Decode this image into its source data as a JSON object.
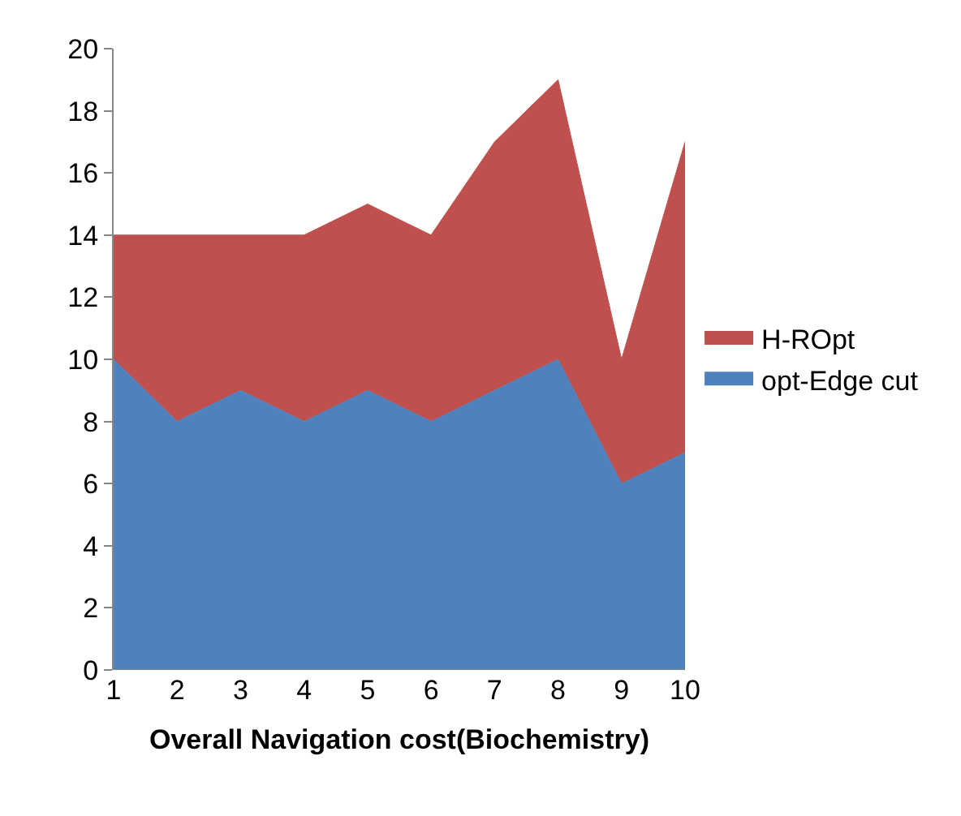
{
  "chart_data": {
    "type": "area",
    "stacked": true,
    "xlabel": "Overall Navigation cost(Biochemistry)",
    "categories": [
      "1",
      "2",
      "3",
      "4",
      "5",
      "6",
      "7",
      "8",
      "9",
      "10"
    ],
    "series": [
      {
        "name": "opt-Edge cut",
        "color": "#4f81bd",
        "values": [
          10,
          8,
          9,
          8,
          9,
          8,
          9,
          10,
          6,
          7
        ]
      },
      {
        "name": "H-ROpt",
        "color": "#c0504d",
        "values": [
          4,
          6,
          5,
          6,
          6,
          6,
          8,
          9,
          4,
          10
        ]
      }
    ],
    "ylim": [
      0,
      20
    ],
    "yticks": [
      0,
      2,
      4,
      6,
      8,
      10,
      12,
      14,
      16,
      18,
      20
    ],
    "legend": "right"
  }
}
